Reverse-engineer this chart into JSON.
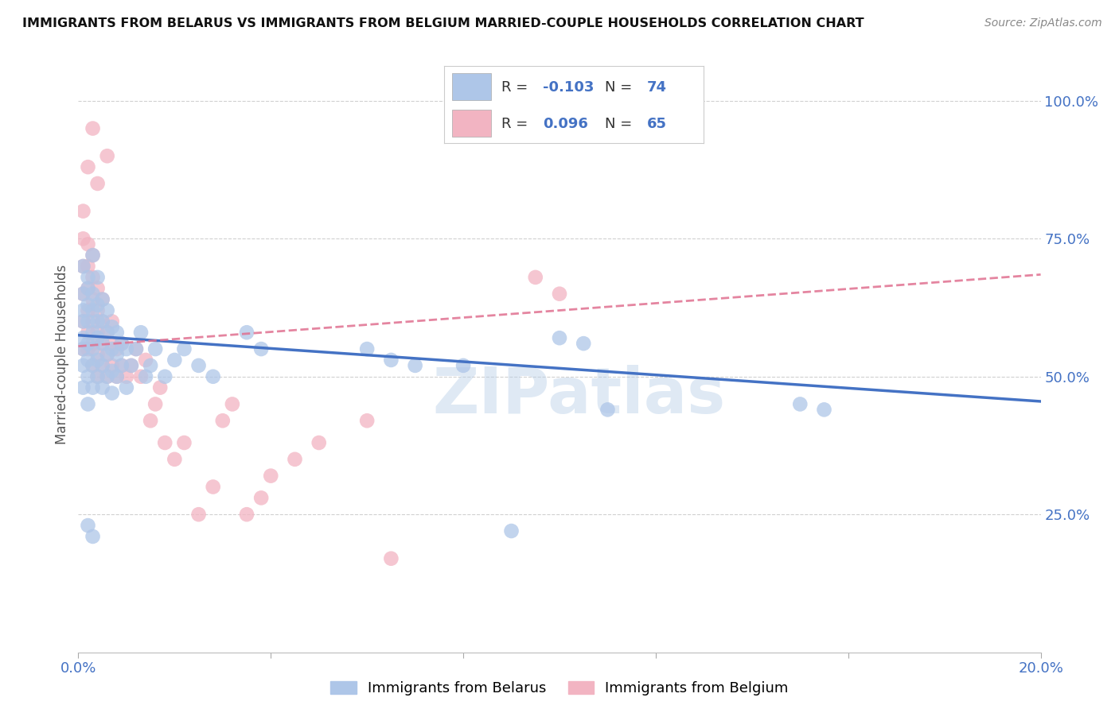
{
  "title": "IMMIGRANTS FROM BELARUS VS IMMIGRANTS FROM BELGIUM MARRIED-COUPLE HOUSEHOLDS CORRELATION CHART",
  "source": "Source: ZipAtlas.com",
  "ylabel": "Married-couple Households",
  "xlim": [
    0.0,
    0.2
  ],
  "ylim": [
    0.0,
    1.08
  ],
  "belarus_color": "#aec6e8",
  "belgium_color": "#f2b4c2",
  "belarus_line_color": "#4472c4",
  "belgium_line_color": "#e07090",
  "background_color": "#ffffff",
  "grid_color": "#d0d0d0",
  "watermark": "ZIPatlas",
  "belarus_scatter_x": [
    0.001,
    0.001,
    0.001,
    0.001,
    0.001,
    0.001,
    0.001,
    0.001,
    0.002,
    0.002,
    0.002,
    0.002,
    0.002,
    0.002,
    0.002,
    0.002,
    0.003,
    0.003,
    0.003,
    0.003,
    0.003,
    0.003,
    0.003,
    0.004,
    0.004,
    0.004,
    0.004,
    0.004,
    0.004,
    0.005,
    0.005,
    0.005,
    0.005,
    0.005,
    0.006,
    0.006,
    0.006,
    0.006,
    0.007,
    0.007,
    0.007,
    0.007,
    0.008,
    0.008,
    0.008,
    0.009,
    0.009,
    0.01,
    0.01,
    0.011,
    0.012,
    0.013,
    0.014,
    0.015,
    0.016,
    0.018,
    0.02,
    0.022,
    0.025,
    0.028,
    0.035,
    0.038,
    0.06,
    0.065,
    0.07,
    0.08,
    0.09,
    0.1,
    0.105,
    0.11,
    0.15,
    0.155,
    0.002,
    0.003
  ],
  "belarus_scatter_y": [
    0.55,
    0.57,
    0.6,
    0.62,
    0.48,
    0.52,
    0.65,
    0.7,
    0.5,
    0.53,
    0.56,
    0.6,
    0.63,
    0.66,
    0.45,
    0.68,
    0.48,
    0.52,
    0.55,
    0.58,
    0.62,
    0.65,
    0.72,
    0.5,
    0.53,
    0.57,
    0.6,
    0.63,
    0.68,
    0.48,
    0.52,
    0.56,
    0.6,
    0.64,
    0.5,
    0.54,
    0.58,
    0.62,
    0.47,
    0.51,
    0.55,
    0.59,
    0.5,
    0.54,
    0.58,
    0.52,
    0.56,
    0.48,
    0.55,
    0.52,
    0.55,
    0.58,
    0.5,
    0.52,
    0.55,
    0.5,
    0.53,
    0.55,
    0.52,
    0.5,
    0.58,
    0.55,
    0.55,
    0.53,
    0.52,
    0.52,
    0.22,
    0.57,
    0.56,
    0.44,
    0.45,
    0.44,
    0.23,
    0.21
  ],
  "belgium_scatter_x": [
    0.001,
    0.001,
    0.001,
    0.001,
    0.001,
    0.001,
    0.002,
    0.002,
    0.002,
    0.002,
    0.002,
    0.002,
    0.003,
    0.003,
    0.003,
    0.003,
    0.003,
    0.003,
    0.004,
    0.004,
    0.004,
    0.004,
    0.004,
    0.005,
    0.005,
    0.005,
    0.005,
    0.006,
    0.006,
    0.006,
    0.007,
    0.007,
    0.007,
    0.008,
    0.008,
    0.009,
    0.009,
    0.01,
    0.011,
    0.012,
    0.013,
    0.014,
    0.015,
    0.016,
    0.017,
    0.018,
    0.02,
    0.022,
    0.025,
    0.028,
    0.03,
    0.032,
    0.035,
    0.038,
    0.04,
    0.045,
    0.05,
    0.06,
    0.065,
    0.095,
    0.1,
    0.006,
    0.003,
    0.004,
    0.002
  ],
  "belgium_scatter_y": [
    0.55,
    0.6,
    0.65,
    0.7,
    0.75,
    0.8,
    0.55,
    0.58,
    0.62,
    0.66,
    0.7,
    0.74,
    0.52,
    0.56,
    0.6,
    0.64,
    0.68,
    0.72,
    0.5,
    0.54,
    0.58,
    0.62,
    0.66,
    0.52,
    0.56,
    0.6,
    0.64,
    0.5,
    0.54,
    0.58,
    0.52,
    0.56,
    0.6,
    0.5,
    0.55,
    0.52,
    0.56,
    0.5,
    0.52,
    0.55,
    0.5,
    0.53,
    0.42,
    0.45,
    0.48,
    0.38,
    0.35,
    0.38,
    0.25,
    0.3,
    0.42,
    0.45,
    0.25,
    0.28,
    0.32,
    0.35,
    0.38,
    0.42,
    0.17,
    0.68,
    0.65,
    0.9,
    0.95,
    0.85,
    0.88
  ],
  "belarus_line_x0": 0.0,
  "belarus_line_y0": 0.575,
  "belarus_line_x1": 0.2,
  "belarus_line_y1": 0.455,
  "belgium_line_x0": 0.0,
  "belgium_line_y0": 0.555,
  "belgium_line_x1": 0.2,
  "belgium_line_y1": 0.685
}
